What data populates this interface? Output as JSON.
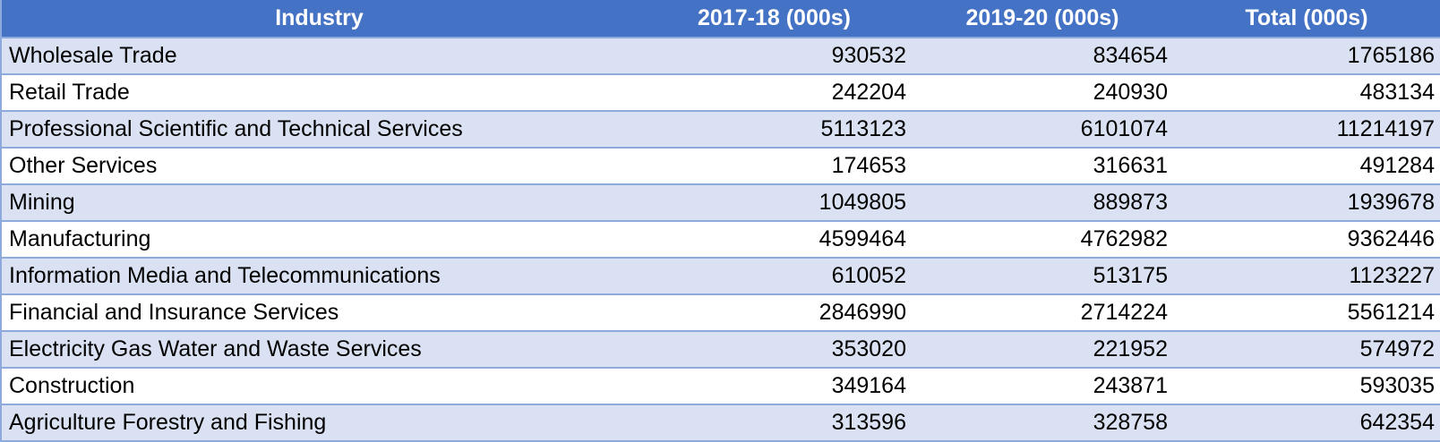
{
  "chart_data": {
    "type": "table",
    "columns": [
      "Industry",
      "2017-18 (000s)",
      "2019-20 (000s)",
      "Total (000s)"
    ],
    "rows": [
      [
        "Wholesale Trade",
        "930532",
        "834654",
        "1765186"
      ],
      [
        "Retail Trade",
        "242204",
        "240930",
        "483134"
      ],
      [
        "Professional Scientific and Technical Services",
        "5113123",
        "6101074",
        "11214197"
      ],
      [
        "Other Services",
        "174653",
        "316631",
        "491284"
      ],
      [
        "Mining",
        "1049805",
        "889873",
        "1939678"
      ],
      [
        "Manufacturing",
        "4599464",
        "4762982",
        "9362446"
      ],
      [
        "Information Media and Telecommunications",
        "610052",
        "513175",
        "1123227"
      ],
      [
        "Financial and Insurance Services",
        "2846990",
        "2714224",
        "5561214"
      ],
      [
        "Electricity Gas Water and Waste Services",
        "353020",
        "221952",
        "574972"
      ],
      [
        "Construction",
        "349164",
        "243871",
        "593035"
      ],
      [
        "Agriculture Forestry and Fishing",
        "313596",
        "328758",
        "642354"
      ]
    ]
  },
  "colors": {
    "header_bg": "#4472c4",
    "header_text": "#ffffff",
    "band_bg": "#d9e1f2",
    "plain_bg": "#ffffff",
    "rule": "#8ea9db"
  }
}
